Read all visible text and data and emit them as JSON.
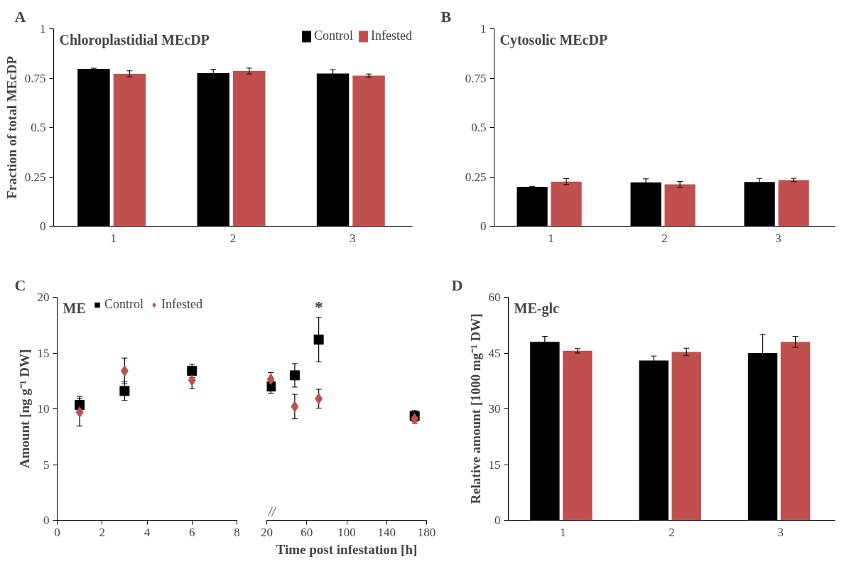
{
  "chart_data": [
    {
      "type": "bar",
      "title": "Chloroplastidial MEcDP",
      "ylabel": "Fraction of total MEcDP",
      "categories": [
        "1",
        "2",
        "3"
      ],
      "ylim": [
        0,
        1
      ],
      "yticks": [
        0,
        0.25,
        0.5,
        0.75,
        1
      ],
      "legend": "top right",
      "annotations": [
        "A"
      ],
      "series": [
        {
          "name": "Control",
          "color": "#000000",
          "values": [
            0.797,
            0.775,
            0.773
          ],
          "errors": [
            0.003,
            0.02,
            0.02
          ]
        },
        {
          "name": "Infested",
          "color": "#c0504d",
          "values": [
            0.772,
            0.786,
            0.763
          ],
          "errors": [
            0.015,
            0.015,
            0.008
          ]
        }
      ]
    },
    {
      "type": "bar",
      "title": "Cytosolic MEcDP",
      "categories": [
        "1",
        "2",
        "3"
      ],
      "ylim": [
        0,
        1
      ],
      "yticks": [
        0,
        0.25,
        0.5,
        0.75,
        1
      ],
      "annotations": [
        "B"
      ],
      "series": [
        {
          "color": "#000000",
          "values": [
            0.2,
            0.222,
            0.224
          ],
          "errors": [
            0.002,
            0.018,
            0.018
          ]
        },
        {
          "color": "#c0504d",
          "values": [
            0.226,
            0.212,
            0.234
          ],
          "errors": [
            0.015,
            0.015,
            0.008
          ]
        }
      ]
    },
    {
      "type": "scatter",
      "title": "ME",
      "ylabel": "Amount [ng g⁻¹ DW]",
      "xlim": [
        0,
        8
      ],
      "xticks": [
        0,
        2,
        4,
        6,
        8
      ],
      "ylim": [
        0,
        20
      ],
      "yticks": [
        0,
        5,
        10,
        15,
        20
      ],
      "legend": "top",
      "annotations": [
        "C"
      ],
      "series": [
        {
          "name": "Control",
          "color": "#000000",
          "marker": "square",
          "x": [
            1,
            3,
            6
          ],
          "values": [
            10.35,
            11.6,
            13.4
          ],
          "errors": [
            0.75,
            0.85,
            0.6
          ]
        },
        {
          "name": "Infested",
          "color": "#c0504d",
          "marker": "diamond",
          "x": [
            1,
            3,
            6
          ],
          "values": [
            9.7,
            13.4,
            12.55
          ],
          "errors": [
            1.25,
            1.15,
            0.75
          ]
        }
      ]
    },
    {
      "type": "scatter",
      "xlabel": "Time post infestation [h]",
      "xlim": [
        20,
        180
      ],
      "xticks": [
        20,
        60,
        100,
        140,
        180
      ],
      "ylim": [
        0,
        20
      ],
      "tick_labels": "x",
      "annotations": [
        "//",
        {
          "text": "*",
          "x": 72,
          "y": 18.2
        }
      ],
      "series": [
        {
          "color": "#000000",
          "marker": "square",
          "x": [
            24,
            48,
            72,
            168
          ],
          "values": [
            12.0,
            13.0,
            16.2,
            9.35
          ],
          "errors": [
            0.6,
            1.05,
            2.0,
            0.5
          ]
        },
        {
          "color": "#c0504d",
          "marker": "diamond",
          "x": [
            24,
            48,
            72,
            168
          ],
          "values": [
            12.65,
            10.2,
            10.9,
            9.1
          ],
          "errors": [
            0.6,
            1.1,
            0.85,
            0.4
          ]
        }
      ]
    },
    {
      "type": "bar",
      "title": "ME-glc",
      "ylabel": "Relative amount [1000 mg⁻¹ DW]",
      "categories": [
        "1",
        "2",
        "3"
      ],
      "ylim": [
        0,
        60
      ],
      "yticks": [
        0,
        15,
        30,
        45,
        60
      ],
      "annotations": [
        "D"
      ],
      "series": [
        {
          "color": "#000000",
          "values": [
            48,
            43,
            45
          ],
          "errors": [
            1.5,
            1.2,
            5
          ]
        },
        {
          "color": "#c0504d",
          "values": [
            45.6,
            45.3,
            48
          ],
          "errors": [
            0.6,
            1,
            1.5
          ]
        }
      ]
    }
  ]
}
